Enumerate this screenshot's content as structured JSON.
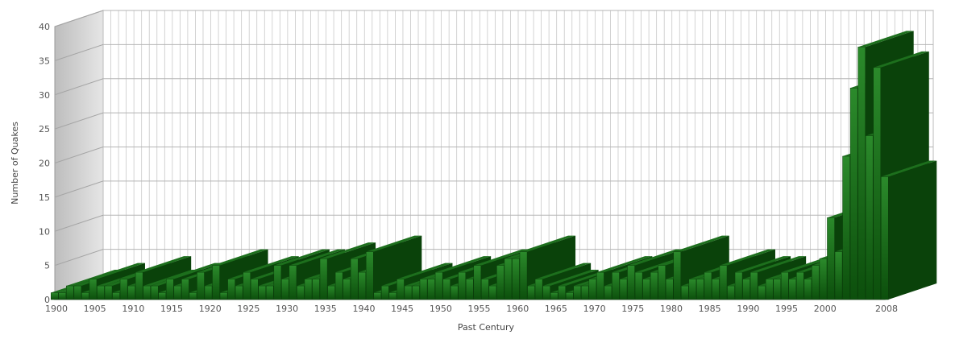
{
  "chart_data": {
    "type": "bar",
    "style": "3d",
    "title": "",
    "xlabel": "Past Century",
    "ylabel": "Number of Quakes",
    "ylim": [
      0,
      40
    ],
    "yticks": [
      0,
      5,
      10,
      15,
      20,
      25,
      30,
      35,
      40
    ],
    "xtick_labels": [
      "1900",
      "1905",
      "1910",
      "1915",
      "1920",
      "1925",
      "1930",
      "1935",
      "1940",
      "1945",
      "1950",
      "1955",
      "1960",
      "1965",
      "1970",
      "1975",
      "1980",
      "1985",
      "1990",
      "1995",
      "2000",
      "2008"
    ],
    "grid": true,
    "legend": "none",
    "bar_color": "#0e5c0e",
    "x": [
      1900,
      1901,
      1902,
      1903,
      1904,
      1905,
      1906,
      1907,
      1908,
      1909,
      1910,
      1911,
      1912,
      1913,
      1914,
      1915,
      1916,
      1917,
      1918,
      1919,
      1920,
      1921,
      1922,
      1923,
      1924,
      1925,
      1926,
      1927,
      1928,
      1929,
      1930,
      1931,
      1932,
      1933,
      1934,
      1935,
      1936,
      1937,
      1938,
      1939,
      1940,
      1941,
      1942,
      1943,
      1944,
      1945,
      1946,
      1947,
      1948,
      1949,
      1950,
      1951,
      1952,
      1953,
      1954,
      1955,
      1956,
      1957,
      1958,
      1959,
      1960,
      1961,
      1962,
      1963,
      1964,
      1965,
      1966,
      1967,
      1968,
      1969,
      1970,
      1971,
      1972,
      1973,
      1974,
      1975,
      1976,
      1977,
      1978,
      1979,
      1980,
      1981,
      1982,
      1983,
      1984,
      1985,
      1986,
      1987,
      1988,
      1989,
      1990,
      1991,
      1992,
      1993,
      1994,
      1995,
      1996,
      1997,
      1998,
      1999,
      2000,
      2001,
      2002,
      2003,
      2004,
      2005,
      2006,
      2007,
      2008
    ],
    "values": [
      1,
      1,
      2,
      2,
      1,
      3,
      2,
      2,
      1,
      3,
      2,
      4,
      2,
      2,
      1,
      3,
      2,
      3,
      1,
      4,
      2,
      5,
      1,
      3,
      2,
      4,
      3,
      2,
      2,
      5,
      3,
      5,
      2,
      3,
      3,
      6,
      2,
      4,
      3,
      6,
      4,
      7,
      1,
      2,
      1,
      3,
      2,
      2,
      3,
      3,
      4,
      3,
      2,
      4,
      3,
      5,
      3,
      2,
      5,
      6,
      6,
      7,
      2,
      3,
      2,
      1,
      2,
      1,
      2,
      2,
      3,
      4,
      2,
      4,
      3,
      5,
      4,
      3,
      4,
      5,
      3,
      7,
      2,
      3,
      3,
      4,
      3,
      5,
      2,
      4,
      3,
      4,
      2,
      3,
      3,
      4,
      3,
      4,
      3,
      5,
      6,
      12,
      7,
      21,
      31,
      37,
      24,
      34,
      18
    ]
  }
}
